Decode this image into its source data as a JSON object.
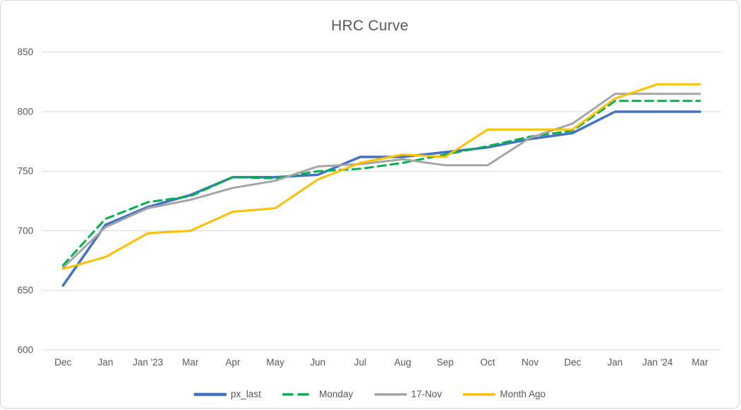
{
  "window": {
    "background": "#ffffff",
    "border_color": "#d7d7d7"
  },
  "chart_data": {
    "type": "line",
    "title": "HRC Curve",
    "title_color": "#595959",
    "categories": [
      "Dec",
      "Jan",
      "Jan '23",
      "Mar",
      "Apr",
      "May",
      "Jun",
      "Jul",
      "Aug",
      "Sep",
      "Oct",
      "Nov",
      "Dec",
      "Jan",
      "Jan '24",
      "Mar"
    ],
    "series": [
      {
        "name": "px_last",
        "color": "#4472c4",
        "dash": "solid",
        "width": 3.5,
        "values": [
          654,
          705,
          720,
          730,
          745,
          745,
          747,
          762,
          762,
          766,
          770,
          777,
          782,
          800,
          800,
          800
        ]
      },
      {
        "name": "Monday",
        "color": "#00b050",
        "dash": "dashed",
        "width": 3,
        "values": [
          671,
          710,
          724,
          729,
          745,
          744,
          750,
          752,
          757,
          764,
          771,
          779,
          784,
          809,
          809,
          809
        ]
      },
      {
        "name": "17-Nov",
        "color": "#a5a5a5",
        "dash": "solid",
        "width": 3,
        "values": [
          669,
          703,
          719,
          726,
          736,
          742,
          754,
          756,
          760,
          755,
          755,
          778,
          790,
          815,
          815,
          815
        ]
      },
      {
        "name": "Month Ago",
        "color": "#ffc000",
        "dash": "solid",
        "width": 3,
        "values": [
          668,
          678,
          698,
          700,
          716,
          719,
          743,
          757,
          764,
          762,
          785,
          785,
          785,
          811,
          823,
          823
        ]
      }
    ],
    "ylim": [
      600,
      850
    ],
    "y_ticks": [
      "600",
      "650",
      "700",
      "750",
      "800",
      "850"
    ],
    "grid": true,
    "gridline_color": "#d9d9d9",
    "axis_label_color": "#595959",
    "legend_position": "bottom"
  }
}
